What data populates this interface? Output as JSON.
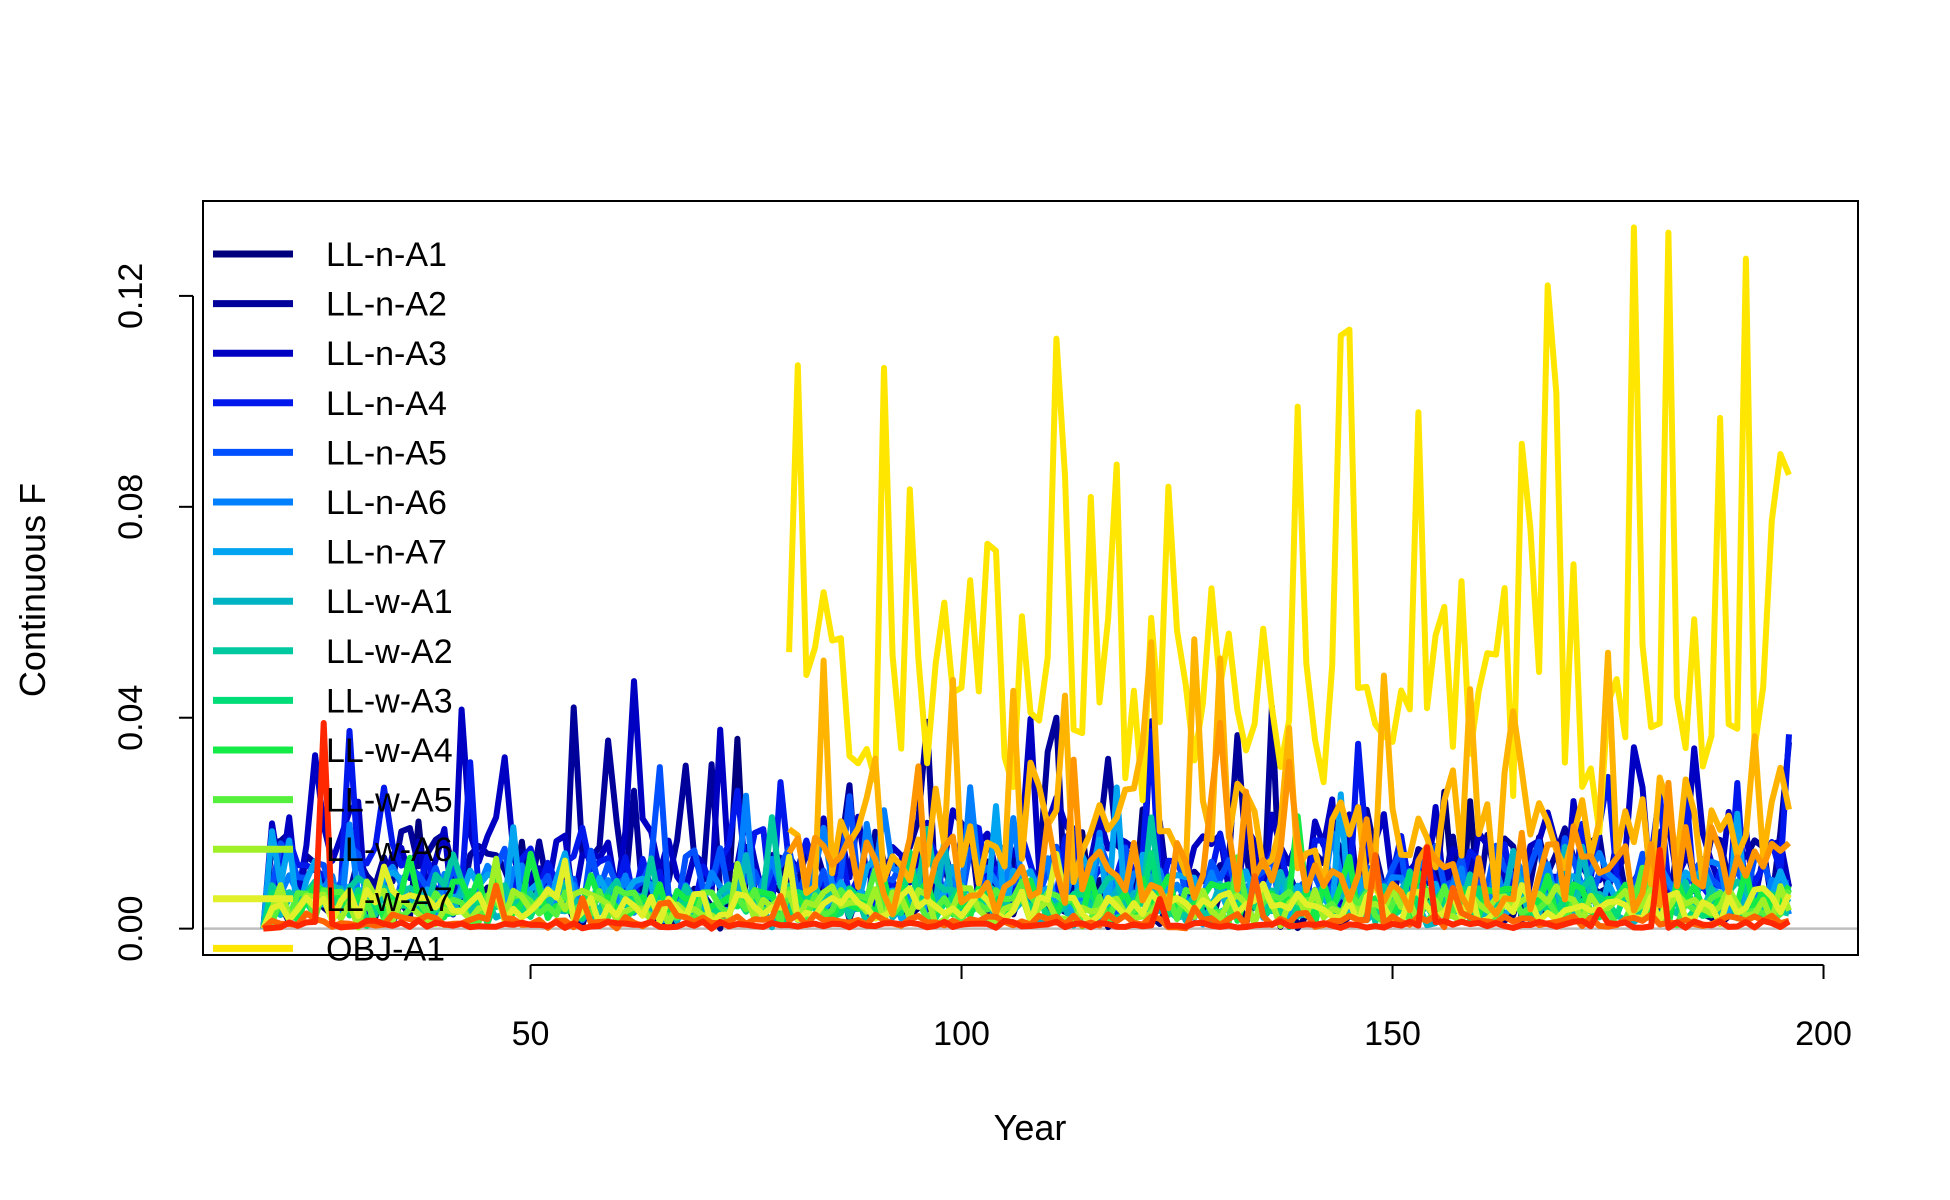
{
  "chart_data": {
    "type": "line",
    "title": "",
    "xlabel": "Year",
    "ylabel": "Continuous F",
    "xlim": [
      12,
      204
    ],
    "ylim": [
      -0.005,
      0.138
    ],
    "x_ticks": [
      50,
      100,
      150,
      200
    ],
    "x_tick_labels": [
      "50",
      "100",
      "150",
      "200"
    ],
    "y_ticks": [
      0,
      0.04,
      0.08,
      0.12
    ],
    "y_tick_labels": [
      "0.00",
      "0.04",
      "0.08",
      "0.12"
    ],
    "reference_line": {
      "y": 0,
      "color": "#bebebe"
    },
    "legend_position": "top-left",
    "x": {
      "start": 19,
      "end": 196,
      "step": 1
    },
    "series": [
      {
        "name": "LL-n-A1",
        "color": "#00007F",
        "baseline": 0.003,
        "noise": 0.006,
        "spike_freq": 0.05,
        "spike_max": 0.025,
        "x_from": 19,
        "x_to": 196
      },
      {
        "name": "LL-n-A2",
        "color": "#00009B",
        "baseline": 0.008,
        "noise": 0.012,
        "spike_freq": 0.12,
        "spike_max": 0.03,
        "x_from": 19,
        "x_to": 196
      },
      {
        "name": "LL-n-A3",
        "color": "#0000C3",
        "baseline": 0.01,
        "noise": 0.014,
        "spike_freq": 0.12,
        "spike_max": 0.03,
        "x_from": 19,
        "x_to": 196
      },
      {
        "name": "LL-n-A4",
        "color": "#0018EB",
        "baseline": 0.008,
        "noise": 0.012,
        "spike_freq": 0.12,
        "spike_max": 0.03,
        "x_from": 19,
        "x_to": 196
      },
      {
        "name": "LL-n-A5",
        "color": "#0050FF",
        "baseline": 0.007,
        "noise": 0.01,
        "spike_freq": 0.1,
        "spike_max": 0.025,
        "x_from": 19,
        "x_to": 196
      },
      {
        "name": "LL-n-A6",
        "color": "#0080FF",
        "baseline": 0.005,
        "noise": 0.008,
        "spike_freq": 0.08,
        "spike_max": 0.02,
        "x_from": 19,
        "x_to": 196
      },
      {
        "name": "LL-n-A7",
        "color": "#00A4F0",
        "baseline": 0.004,
        "noise": 0.007,
        "spike_freq": 0.08,
        "spike_max": 0.02,
        "x_from": 19,
        "x_to": 196
      },
      {
        "name": "LL-w-A1",
        "color": "#00B4C3",
        "baseline": 0.003,
        "noise": 0.005,
        "spike_freq": 0.05,
        "spike_max": 0.012,
        "x_from": 19,
        "x_to": 196
      },
      {
        "name": "LL-w-A2",
        "color": "#00C8A0",
        "baseline": 0.004,
        "noise": 0.006,
        "spike_freq": 0.05,
        "spike_max": 0.015,
        "x_from": 19,
        "x_to": 196
      },
      {
        "name": "LL-w-A3",
        "color": "#00DC78",
        "baseline": 0.003,
        "noise": 0.005,
        "spike_freq": 0.05,
        "spike_max": 0.012,
        "x_from": 19,
        "x_to": 196
      },
      {
        "name": "LL-w-A4",
        "color": "#14EB46",
        "baseline": 0.004,
        "noise": 0.006,
        "spike_freq": 0.06,
        "spike_max": 0.015,
        "x_from": 19,
        "x_to": 196
      },
      {
        "name": "LL-w-A5",
        "color": "#55F03C",
        "baseline": 0.003,
        "noise": 0.005,
        "spike_freq": 0.05,
        "spike_max": 0.012,
        "x_from": 19,
        "x_to": 196
      },
      {
        "name": "LL-w-A6",
        "color": "#A0F028",
        "baseline": 0.003,
        "noise": 0.005,
        "spike_freq": 0.05,
        "spike_max": 0.012,
        "x_from": 19,
        "x_to": 196
      },
      {
        "name": "LL-w-A7",
        "color": "#E1F028",
        "baseline": 0.003,
        "noise": 0.005,
        "spike_freq": 0.05,
        "spike_max": 0.012,
        "x_from": 19,
        "x_to": 196
      },
      {
        "name": "OBJ-A1",
        "color": "#FFE600",
        "baseline": 0.035,
        "noise": 0.03,
        "spike_freq": 0.2,
        "spike_max": 0.09,
        "x_from": 80,
        "x_to": 196
      },
      {
        "name": "",
        "color": "#FFB400",
        "baseline": 0.014,
        "noise": 0.016,
        "spike_freq": 0.15,
        "spike_max": 0.035,
        "x_from": 80,
        "x_to": 196
      },
      {
        "name": "",
        "color": "#FF9600",
        "baseline": 0.008,
        "noise": 0.012,
        "spike_freq": 0.1,
        "spike_max": 0.03,
        "x_from": 80,
        "x_to": 196
      },
      {
        "name": "",
        "color": "#FF6400",
        "baseline": 0.001,
        "noise": 0.002,
        "spike_freq": 0.04,
        "spike_max": 0.012,
        "x_from": 19,
        "x_to": 196
      },
      {
        "name": "",
        "color": "#FF2800",
        "baseline": 0.0005,
        "noise": 0.001,
        "spike_freq": 0.03,
        "spike_max": 0.02,
        "x_from": 19,
        "x_to": 196
      }
    ],
    "highlight_points": [
      {
        "series": 0,
        "x": 74,
        "y": 0.036
      },
      {
        "series": 1,
        "x": 111,
        "y": 0.04
      },
      {
        "series": 14,
        "x": 103,
        "y": 0.073
      },
      {
        "series": 14,
        "x": 139,
        "y": 0.099
      },
      {
        "series": 14,
        "x": 168,
        "y": 0.122
      },
      {
        "series": 14,
        "x": 178,
        "y": 0.133
      },
      {
        "series": 14,
        "x": 182,
        "y": 0.132
      },
      {
        "series": 14,
        "x": 195,
        "y": 0.09
      },
      {
        "series": 15,
        "x": 149,
        "y": 0.048
      },
      {
        "series": 18,
        "x": 26,
        "y": 0.039
      }
    ]
  }
}
